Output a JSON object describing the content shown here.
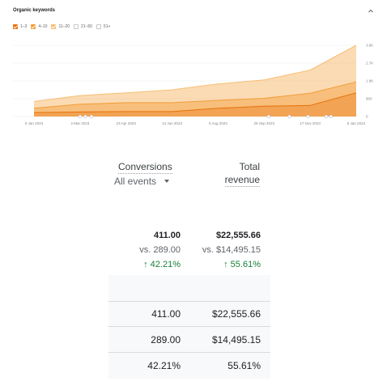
{
  "organic_keywords": {
    "title": "Organic keywords",
    "legend": [
      {
        "label": "1–3",
        "checked": true,
        "color": "#e8710a"
      },
      {
        "label": "4–10",
        "checked": true,
        "color": "#f29d38"
      },
      {
        "label": "11–20",
        "checked": true,
        "color": "#f7be75"
      },
      {
        "label": "21–50",
        "checked": false,
        "color": "#c7c7c7"
      },
      {
        "label": "51+",
        "checked": false,
        "color": "#c7c7c7"
      }
    ],
    "x_ticks": [
      "9 Jan 2023",
      "2 Mar 2023",
      "23 Apr 2023",
      "14 Jun 2023",
      "5 Aug 2023",
      "26 Sep 2023",
      "17 Nov 2023",
      "8 Jan 2024"
    ],
    "y_ticks": [
      "3.6K",
      "2.7K",
      "1.8K",
      "900",
      "0"
    ]
  },
  "chart_data": {
    "type": "area",
    "title": "Organic keywords",
    "x": [
      "9 Jan 2023",
      "2 Mar 2023",
      "23 Apr 2023",
      "14 Jun 2023",
      "5 Aug 2023",
      "26 Sep 2023",
      "17 Nov 2023",
      "8 Jan 2024"
    ],
    "ylim": [
      0,
      3600
    ],
    "y_ticks": [
      0,
      900,
      1800,
      2700,
      3600
    ],
    "series": [
      {
        "name": "1–3",
        "color": "#e8710a",
        "values": [
          200,
          230,
          250,
          250,
          420,
          520,
          560,
          1200
        ]
      },
      {
        "name": "4–10",
        "color": "#f29d38",
        "values": [
          420,
          620,
          700,
          700,
          820,
          920,
          1180,
          1750
        ]
      },
      {
        "name": "11–20",
        "color": "#f7be75",
        "values": [
          760,
          1060,
          1200,
          1350,
          1650,
          1850,
          2350,
          3600
        ]
      }
    ]
  },
  "conversions": {
    "metric_label": "Conversions",
    "events_label": "All events",
    "revenue_label_1": "Total",
    "revenue_label_2": "revenue",
    "summary": {
      "conversions_value": "411.00",
      "conversions_vs": "vs. 289.00",
      "conversions_change": "↑ 42.21%",
      "revenue_value": "$22,555.66",
      "revenue_vs": "vs. $14,495.15",
      "revenue_change": "↑ 55.61%"
    },
    "rows": [
      {
        "conversions": "411.00",
        "revenue": "$22,555.66"
      },
      {
        "conversions": "289.00",
        "revenue": "$14,495.15"
      },
      {
        "conversions": "42.21%",
        "revenue": "55.61%"
      }
    ],
    "positive_color": "#188038"
  }
}
